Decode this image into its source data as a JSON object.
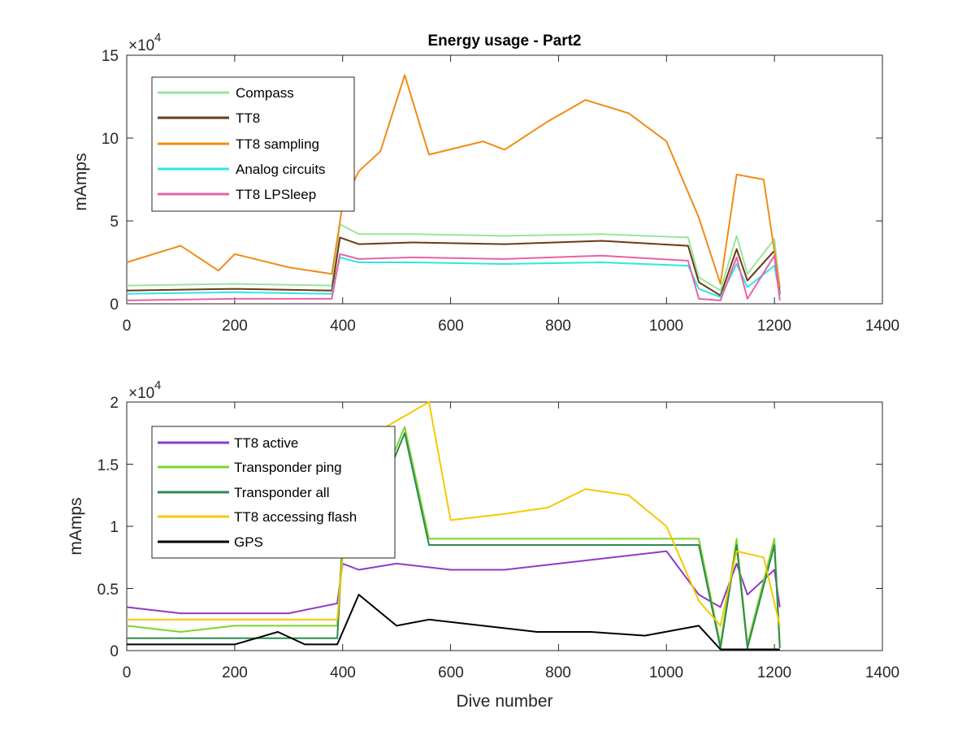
{
  "chart_data": [
    {
      "type": "line",
      "title": "Energy usage - Part2",
      "xlabel": "",
      "ylabel": "mAmps",
      "exponent_base": "×10",
      "exponent_power": "4",
      "xlim": [
        0,
        1400
      ],
      "ylim": [
        0,
        15
      ],
      "xticks": [
        "0",
        "200",
        "400",
        "600",
        "800",
        "1000",
        "1200",
        "1400"
      ],
      "yticks": [
        "0",
        "5",
        "10",
        "15"
      ],
      "legend_position": "top-left",
      "series": [
        {
          "name": "Compass",
          "color": "#98e698",
          "x": [
            0,
            200,
            380,
            395,
            430,
            530,
            700,
            880,
            1040,
            1060,
            1100,
            1130,
            1150,
            1200,
            1210
          ],
          "y": [
            1.1,
            1.2,
            1.1,
            4.8,
            4.2,
            4.2,
            4.1,
            4.2,
            4.0,
            1.6,
            0.8,
            4.1,
            1.8,
            3.9,
            0.9
          ]
        },
        {
          "name": "TT8",
          "color": "#6b3a14",
          "x": [
            0,
            200,
            380,
            395,
            430,
            530,
            700,
            880,
            1040,
            1060,
            1100,
            1130,
            1150,
            1200,
            1210
          ],
          "y": [
            0.8,
            0.9,
            0.8,
            4.0,
            3.6,
            3.7,
            3.6,
            3.8,
            3.5,
            1.3,
            0.5,
            3.3,
            1.4,
            3.2,
            0.6
          ]
        },
        {
          "name": "TT8 sampling",
          "color": "#f08c14",
          "x": [
            0,
            100,
            170,
            200,
            300,
            380,
            400,
            430,
            470,
            515,
            560,
            660,
            700,
            780,
            850,
            930,
            1000,
            1060,
            1100,
            1130,
            1180,
            1210
          ],
          "y": [
            2.5,
            3.5,
            2.0,
            3.0,
            2.2,
            1.8,
            6.0,
            8.0,
            9.2,
            13.8,
            9.0,
            9.8,
            9.3,
            11.0,
            12.3,
            11.5,
            9.8,
            5.2,
            1.2,
            7.8,
            7.5,
            1.0
          ]
        },
        {
          "name": "Analog circuits",
          "color": "#2ee6e6",
          "x": [
            0,
            200,
            380,
            395,
            430,
            530,
            700,
            880,
            1040,
            1060,
            1100,
            1130,
            1150,
            1200,
            1210
          ],
          "y": [
            0.6,
            0.7,
            0.6,
            2.8,
            2.5,
            2.5,
            2.4,
            2.5,
            2.3,
            0.9,
            0.4,
            2.4,
            1.0,
            2.3,
            0.5
          ]
        },
        {
          "name": "TT8 LPSleep",
          "color": "#e861a8",
          "x": [
            0,
            200,
            380,
            395,
            430,
            530,
            700,
            880,
            1040,
            1060,
            1100,
            1130,
            1150,
            1200,
            1210
          ],
          "y": [
            0.2,
            0.3,
            0.3,
            3.0,
            2.7,
            2.8,
            2.7,
            2.9,
            2.6,
            0.3,
            0.2,
            2.8,
            0.3,
            2.9,
            0.2
          ]
        }
      ]
    },
    {
      "type": "line",
      "title": "",
      "xlabel": "Dive number",
      "ylabel": "mAmps",
      "exponent_base": "×10",
      "exponent_power": "4",
      "xlim": [
        0,
        1400
      ],
      "ylim": [
        0,
        2
      ],
      "xticks": [
        "0",
        "200",
        "400",
        "600",
        "800",
        "1000",
        "1200",
        "1400"
      ],
      "yticks": [
        "0",
        "0.5",
        "1",
        "1.5",
        "2"
      ],
      "legend_position": "top-left",
      "series": [
        {
          "name": "TT8 active",
          "color": "#8c3cc8",
          "x": [
            0,
            100,
            200,
            300,
            390,
            400,
            430,
            500,
            600,
            700,
            800,
            900,
            1000,
            1060,
            1100,
            1130,
            1150,
            1200,
            1210
          ],
          "y": [
            0.35,
            0.3,
            0.3,
            0.3,
            0.38,
            0.7,
            0.65,
            0.7,
            0.65,
            0.65,
            0.7,
            0.75,
            0.8,
            0.45,
            0.35,
            0.7,
            0.45,
            0.65,
            0.35
          ]
        },
        {
          "name": "Transponder ping",
          "color": "#7ad62a",
          "x": [
            0,
            100,
            200,
            300,
            390,
            400,
            430,
            515,
            560,
            660,
            700,
            800,
            900,
            1000,
            1060,
            1100,
            1130,
            1150,
            1200,
            1210
          ],
          "y": [
            0.2,
            0.15,
            0.2,
            0.2,
            0.2,
            0.9,
            0.9,
            1.8,
            0.9,
            0.9,
            0.9,
            0.9,
            0.9,
            0.9,
            0.9,
            0.05,
            0.9,
            0.05,
            0.9,
            0.05
          ]
        },
        {
          "name": "Transponder all",
          "color": "#2e8a4e",
          "x": [
            0,
            100,
            200,
            300,
            390,
            400,
            430,
            515,
            560,
            660,
            700,
            800,
            900,
            1000,
            1060,
            1100,
            1130,
            1150,
            1200,
            1210
          ],
          "y": [
            0.1,
            0.1,
            0.1,
            0.1,
            0.1,
            0.85,
            0.85,
            1.75,
            0.85,
            0.85,
            0.85,
            0.85,
            0.85,
            0.85,
            0.85,
            0.02,
            0.85,
            0.02,
            0.85,
            0.02
          ]
        },
        {
          "name": "TT8 accessing flash",
          "color": "#f5c800",
          "x": [
            0,
            100,
            200,
            300,
            390,
            400,
            430,
            480,
            560,
            600,
            700,
            780,
            850,
            930,
            1000,
            1060,
            1100,
            1130,
            1180,
            1210
          ],
          "y": [
            0.25,
            0.25,
            0.25,
            0.25,
            0.25,
            0.75,
            1.1,
            1.8,
            2.0,
            1.05,
            1.1,
            1.15,
            1.3,
            1.25,
            1.0,
            0.4,
            0.2,
            0.8,
            0.75,
            0.2
          ]
        },
        {
          "name": "GPS",
          "color": "#000000",
          "x": [
            0,
            100,
            200,
            280,
            330,
            390,
            430,
            500,
            560,
            660,
            760,
            860,
            960,
            1060,
            1100,
            1210
          ],
          "y": [
            0.05,
            0.05,
            0.05,
            0.15,
            0.05,
            0.05,
            0.45,
            0.2,
            0.25,
            0.2,
            0.15,
            0.15,
            0.12,
            0.2,
            0.01,
            0.01
          ]
        }
      ]
    }
  ]
}
